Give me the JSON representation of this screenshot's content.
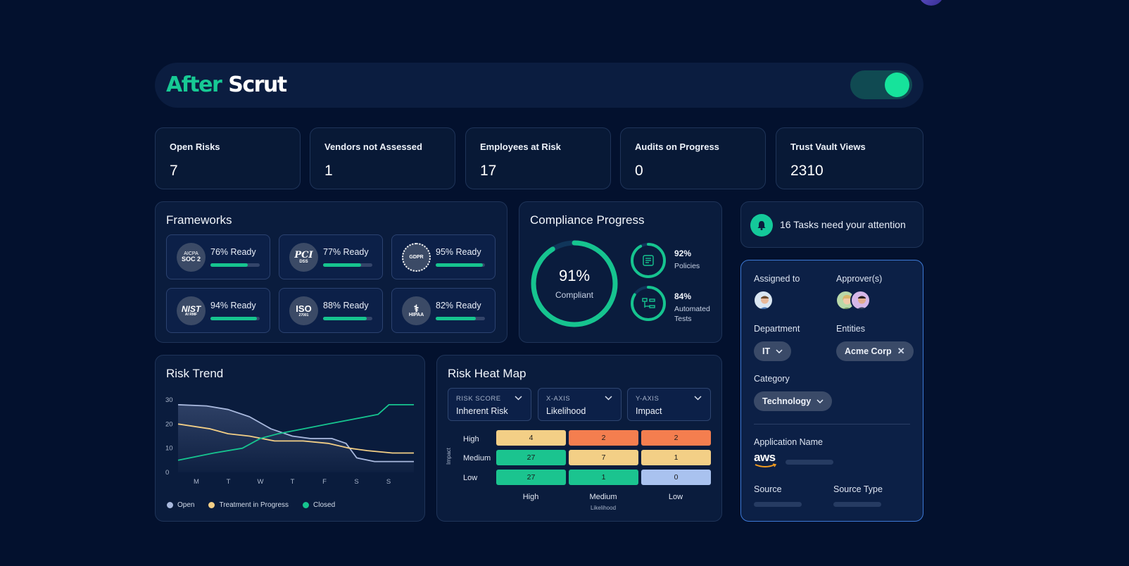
{
  "header": {
    "logo_after": "After",
    "logo_scrut": "Scrut"
  },
  "stats": [
    {
      "label": "Open Risks",
      "value": "7"
    },
    {
      "label": "Vendors not Assessed",
      "value": "1"
    },
    {
      "label": "Employees at Risk",
      "value": "17"
    },
    {
      "label": "Audits on Progress",
      "value": "0"
    },
    {
      "label": "Trust Vault Views",
      "value": "2310"
    }
  ],
  "frameworks": {
    "title": "Frameworks",
    "items": [
      {
        "badge_top": "AICPA",
        "badge_bottom": "SOC 2",
        "ready": "76% Ready",
        "progress": 0.76
      },
      {
        "badge_top": "PCI",
        "badge_bottom": "DSS",
        "ready": "77% Ready",
        "progress": 0.77
      },
      {
        "badge_top": "GDPR",
        "badge_bottom": "",
        "ready": "95% Ready",
        "progress": 0.95
      },
      {
        "badge_top": "NIST",
        "badge_bottom": "AI RMF",
        "ready": "94% Ready",
        "progress": 0.94
      },
      {
        "badge_top": "ISO",
        "badge_bottom": "27001",
        "ready": "88% Ready",
        "progress": 0.88
      },
      {
        "badge_top": "",
        "badge_bottom": "HIPAA",
        "ready": "82% Ready",
        "progress": 0.82
      }
    ]
  },
  "compliance": {
    "title": "Compliance Progress",
    "overall": {
      "value": "91%",
      "label": "Compliant",
      "fraction": 0.91
    },
    "policies": {
      "value": "92%",
      "label": "Policies",
      "fraction": 0.92
    },
    "tests": {
      "value": "84%",
      "label_1": "Automated",
      "label_2": "Tests",
      "fraction": 0.84
    }
  },
  "tasks": {
    "text": "16 Tasks need your attention"
  },
  "assignment": {
    "assigned_to": "Assigned to",
    "approvers": "Approver(s)",
    "department": "Department",
    "department_value": "IT",
    "entities": "Entities",
    "entity_value": "Acme Corp",
    "category": "Category",
    "category_value": "Technology",
    "application_name": "Application Name",
    "app_logo": "aws",
    "source": "Source",
    "source_type": "Source Type"
  },
  "risk_trend": {
    "title": "Risk Trend",
    "legend": [
      "Open",
      "Treatment in Progress",
      "Closed"
    ]
  },
  "heatmap": {
    "title": "Risk Heat Map",
    "dropdowns": [
      {
        "key": "RISK SCORE",
        "value": "Inherent Risk"
      },
      {
        "key": "X-AXIS",
        "value": "Likelihood"
      },
      {
        "key": "Y-AXIS",
        "value": "Impact"
      }
    ],
    "y_title": "Impact",
    "x_title": "Likelihood",
    "rows": [
      "High",
      "Medium",
      "Low"
    ],
    "cols": [
      "High",
      "Medium",
      "Low"
    ],
    "values": [
      [
        "4",
        "2",
        "2"
      ],
      [
        "27",
        "7",
        "1"
      ],
      [
        "27",
        "1",
        "0"
      ]
    ],
    "colors": [
      [
        "#f3cf86",
        "#f47e4f",
        "#f47e4f"
      ],
      [
        "#1bc48f",
        "#f3cf86",
        "#f3cf86"
      ],
      [
        "#1bc48f",
        "#1bc48f",
        "#a9c2ef"
      ]
    ]
  },
  "chart_data": {
    "type": "line",
    "title": "Risk Trend",
    "categories": [
      "M",
      "T",
      "W",
      "T",
      "F",
      "S",
      "S"
    ],
    "yticks": [
      "30",
      "20",
      "10",
      "0"
    ],
    "ylim": [
      0,
      30
    ],
    "series": [
      {
        "name": "Open",
        "color": "#a9b9de",
        "x": [
          0,
          0.8,
          1.4,
          2,
          2.6,
          3.2,
          3.7,
          4.3,
          4.7,
          5,
          5.5,
          6,
          6.6
        ],
        "values": [
          28,
          27.5,
          26,
          23,
          18,
          15,
          14,
          14,
          12,
          6,
          4.5,
          4.5,
          4.5
        ]
      },
      {
        "name": "Treatment in Progress",
        "color": "#f3cf86",
        "x": [
          0,
          0.9,
          1.4,
          2,
          2.7,
          3.5,
          4.2,
          4.8,
          5.3,
          6,
          6.6
        ],
        "values": [
          20,
          18,
          16,
          15,
          13,
          13,
          12,
          10,
          9,
          8,
          8
        ]
      },
      {
        "name": "Closed",
        "color": "#16c48f",
        "x": [
          0,
          1,
          1.8,
          2.3,
          2.8,
          3.5,
          4.2,
          4.9,
          5.6,
          5.9,
          6.6
        ],
        "values": [
          5,
          8,
          10,
          14,
          16,
          18,
          20,
          22,
          24,
          28,
          28
        ]
      }
    ]
  }
}
